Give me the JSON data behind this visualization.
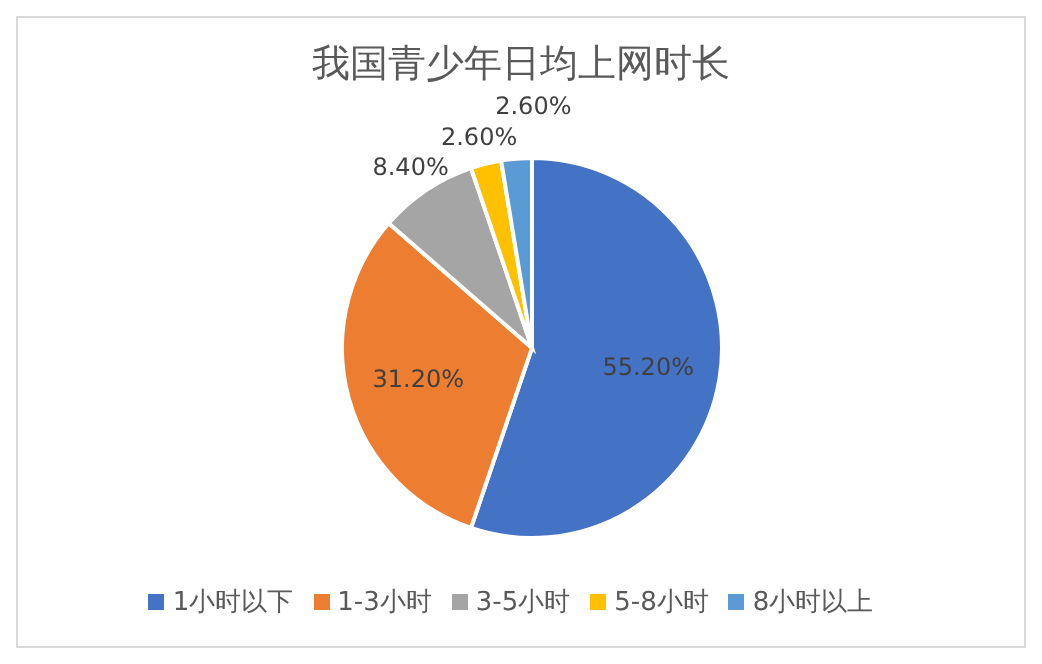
{
  "chart_data": {
    "type": "pie",
    "title": "我国青少年日均上网时长",
    "categories": [
      "1小时以下",
      "1-3小时",
      "3-5小时",
      "5-8小时",
      "8小时以上"
    ],
    "values": [
      55.2,
      31.2,
      8.4,
      2.6,
      2.6
    ],
    "value_labels": [
      "55.20%",
      "31.20%",
      "8.40%",
      "2.60%",
      "2.60%"
    ],
    "colors": [
      "#4472c4",
      "#ed7d31",
      "#a5a5a5",
      "#ffc000",
      "#5b9bd5"
    ],
    "legend": "bottom"
  }
}
